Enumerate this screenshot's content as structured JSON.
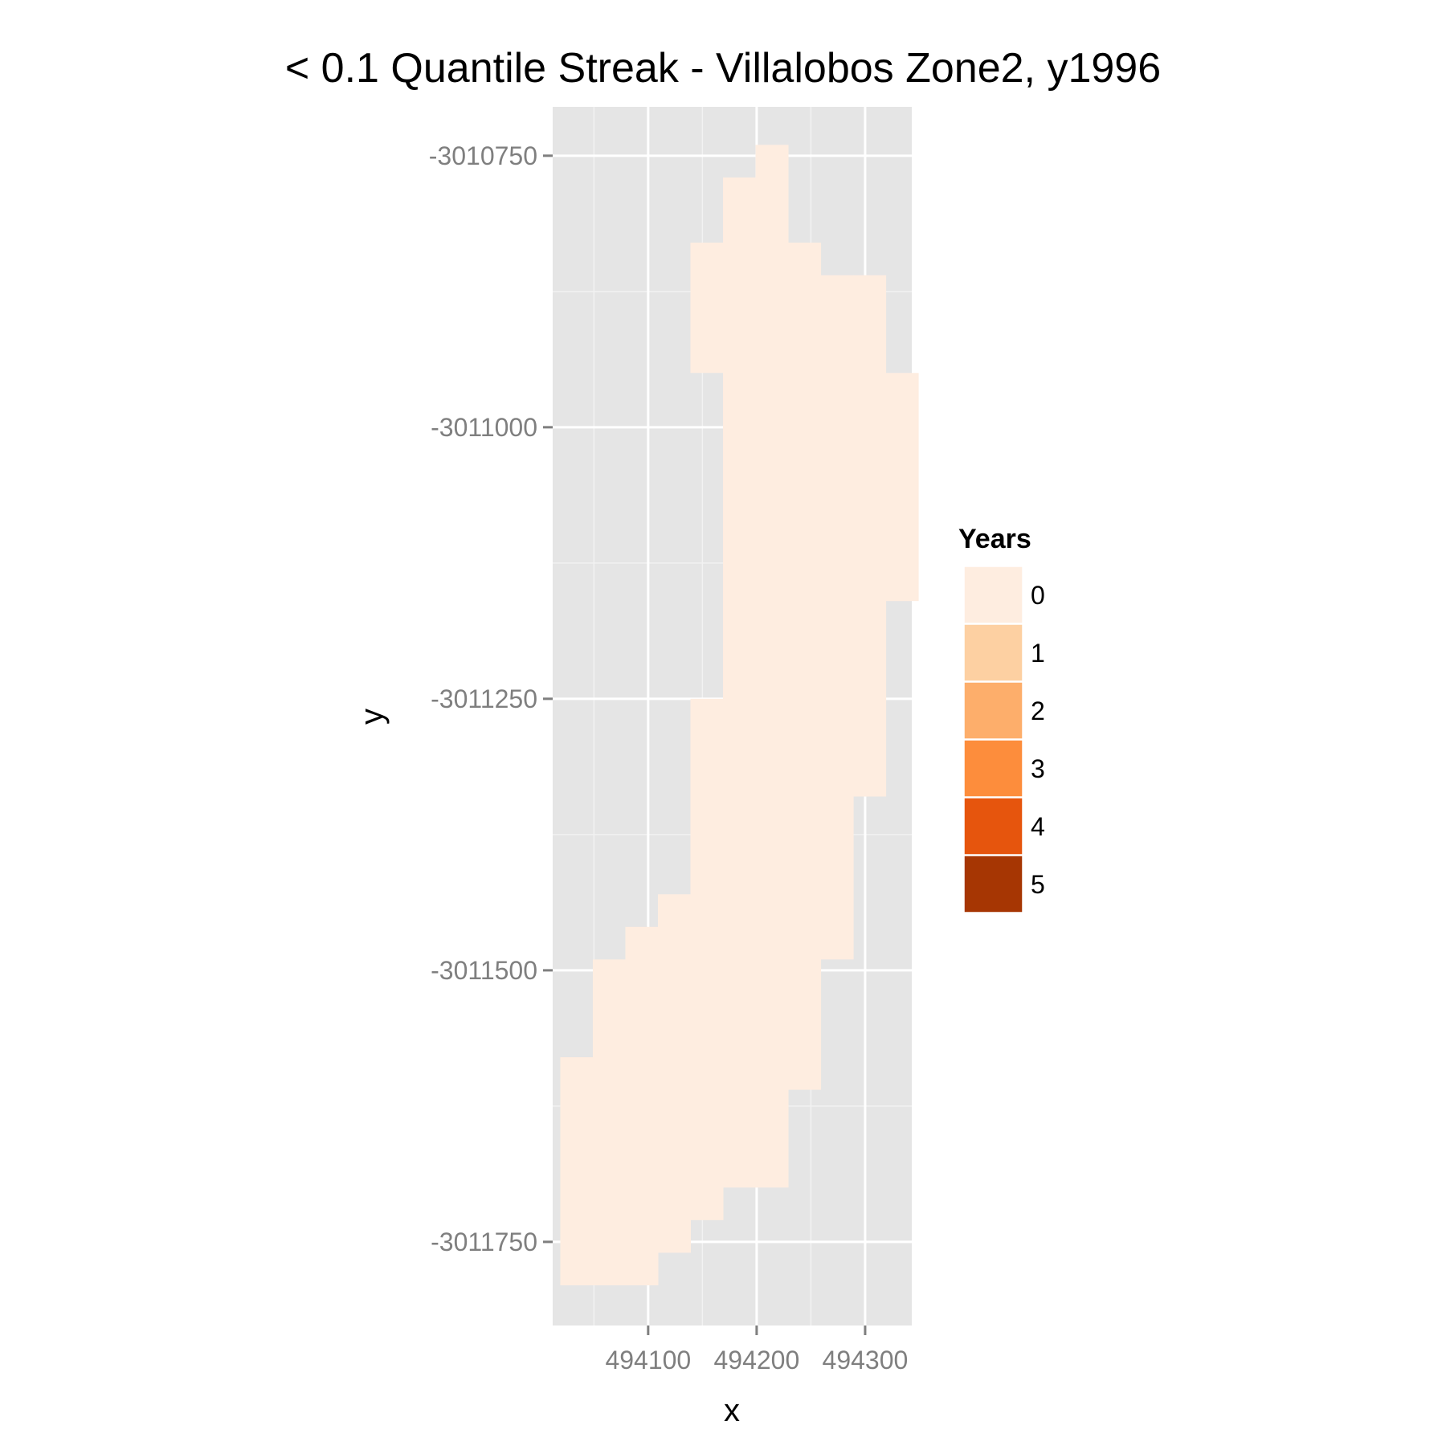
{
  "chart_data": {
    "type": "heatmap",
    "title": "< 0.1 Quantile Streak - Villalobos Zone2, y1996",
    "xlabel": "x",
    "ylabel": "y",
    "xlim": [
      494012,
      494343
    ],
    "ylim": [
      -3011827,
      -3010705
    ],
    "x_ticks": [
      494100,
      494200,
      494300
    ],
    "x_tick_labels": [
      "494100",
      "494200",
      "494300"
    ],
    "y_ticks": [
      -3010750,
      -3011000,
      -3011250,
      -3011500,
      -3011750
    ],
    "y_tick_labels": [
      "-3010750",
      "-3011000",
      "-3011250",
      "-3011500",
      "-3011750"
    ],
    "grid": true,
    "cell_size": 30,
    "legend": {
      "title": "Years",
      "position": "right",
      "levels": [
        {
          "label": "0",
          "color": "#feede0"
        },
        {
          "label": "1",
          "color": "#fdd0a2"
        },
        {
          "label": "2",
          "color": "#fdae6b"
        },
        {
          "label": "3",
          "color": "#fd8d3c"
        },
        {
          "label": "4",
          "color": "#e6550d"
        },
        {
          "label": "5",
          "color": "#a63603"
        }
      ]
    },
    "columns": [
      {
        "x": 494034,
        "y_ranges": [
          [
            -3011775,
            -3011595
          ]
        ],
        "value": 0
      },
      {
        "x": 494064,
        "y_ranges": [
          [
            -3011775,
            -3011505
          ]
        ],
        "value": 0
      },
      {
        "x": 494094,
        "y_ranges": [
          [
            -3011775,
            -3011475
          ]
        ],
        "value": 0
      },
      {
        "x": 494124,
        "y_ranges": [
          [
            -3011745,
            -3011445
          ]
        ],
        "value": 0
      },
      {
        "x": 494154,
        "y_ranges": [
          [
            -3011715,
            -3011265
          ],
          [
            -3010935,
            -3010845
          ]
        ],
        "value": 0
      },
      {
        "x": 494184,
        "y_ranges": [
          [
            -3011685,
            -3010785
          ]
        ],
        "value": 0
      },
      {
        "x": 494214,
        "y_ranges": [
          [
            -3011685,
            -3010755
          ]
        ],
        "value": 0
      },
      {
        "x": 494244,
        "y_ranges": [
          [
            -3011595,
            -3010845
          ]
        ],
        "value": 0
      },
      {
        "x": 494274,
        "y_ranges": [
          [
            -3011475,
            -3010875
          ]
        ],
        "value": 0
      },
      {
        "x": 494304,
        "y_ranges": [
          [
            -3011325,
            -3010875
          ]
        ],
        "value": 0
      },
      {
        "x": 494334,
        "y_ranges": [
          [
            -3011145,
            -3010965
          ]
        ],
        "value": 0
      }
    ]
  }
}
